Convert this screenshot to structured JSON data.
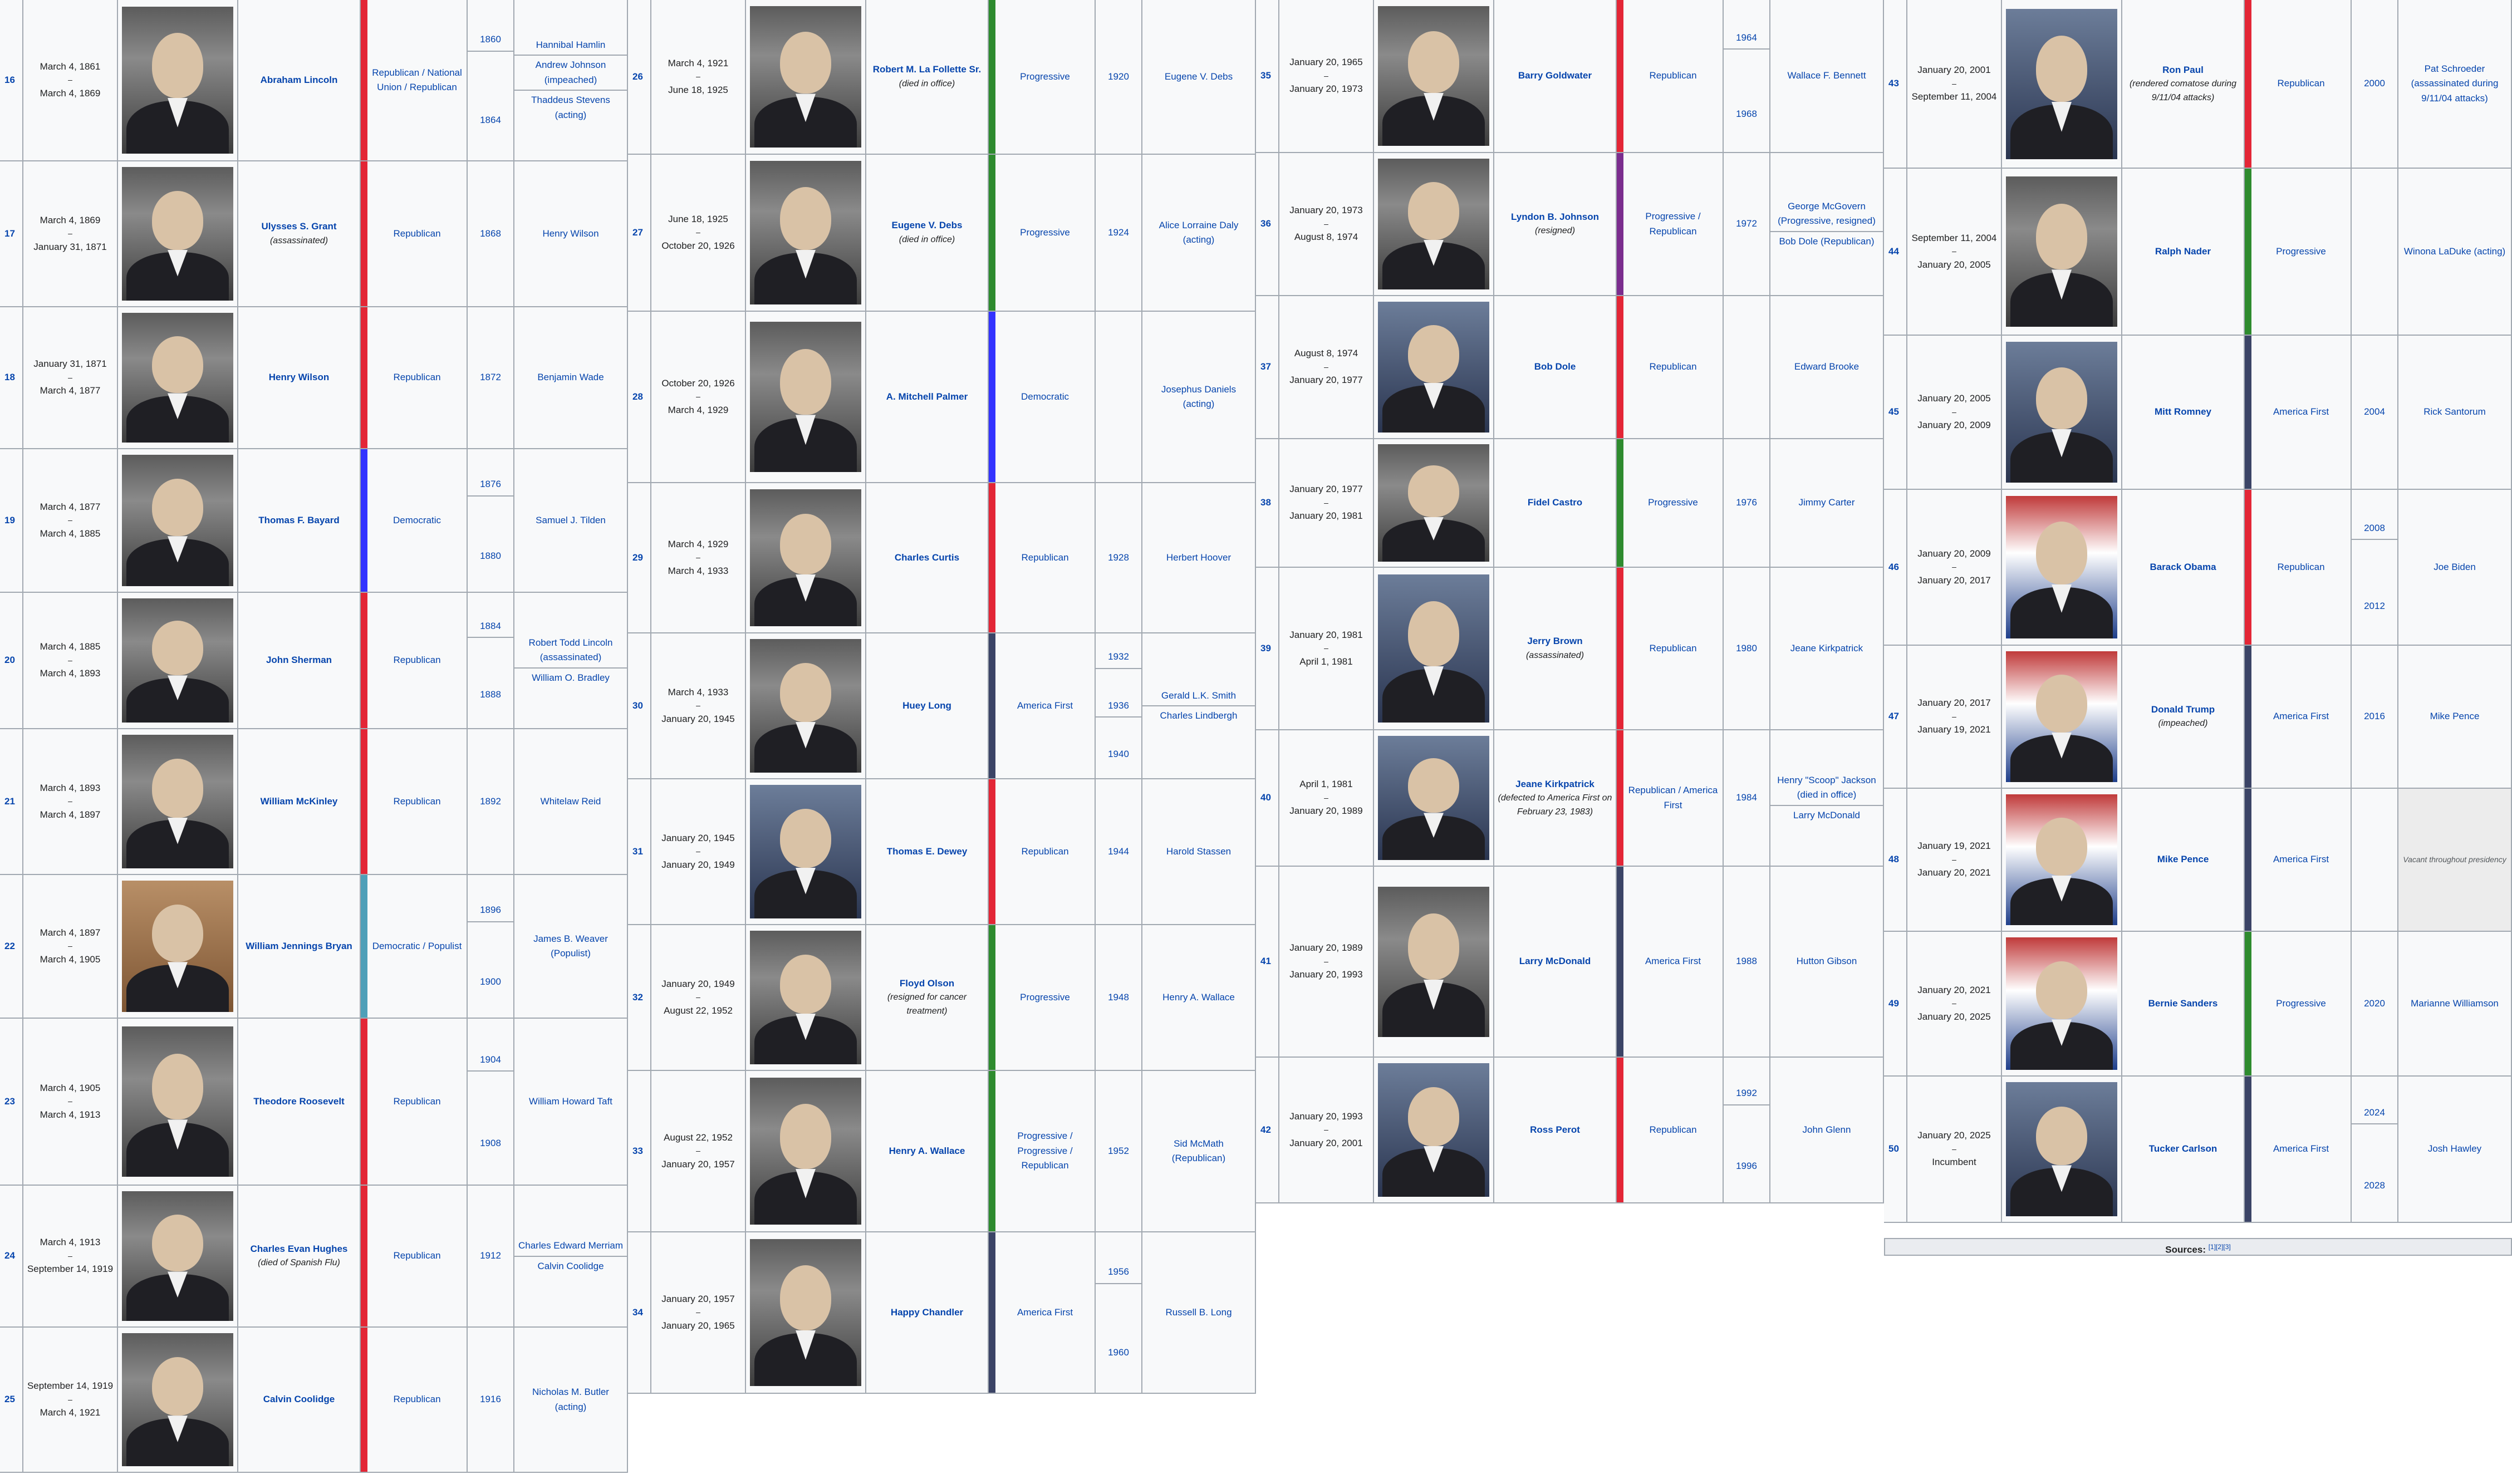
{
  "party_colors": {
    "Republican": "#e32636",
    "Democratic": "#3333ff",
    "Progressive": "#2e8b2e",
    "America First": "#3b4466",
    "Democratic / Populist": "#4f9fb8",
    "Progressive / Republican": "#7b2d8e"
  },
  "columns": [
    [
      {
        "num": "16",
        "term": [
          "March 4, 1861",
          "–",
          "March 4, 1869"
        ],
        "name": "Abraham Lincoln",
        "note": "",
        "party": "Republican / National Union / Republican",
        "years": [
          "1860",
          "1864"
        ],
        "vp": [
          "Hannibal Hamlin",
          "Andrew Johnson (impeached)",
          "Thaddeus Stevens (acting)"
        ],
        "color": "Republican",
        "portrait": "bw"
      },
      {
        "num": "17",
        "term": [
          "March 4, 1869",
          "–",
          "January 31, 1871"
        ],
        "name": "Ulysses S. Grant",
        "note": "(assassinated)",
        "party": "Republican",
        "years": [
          "1868"
        ],
        "vp": [
          "Henry Wilson"
        ],
        "color": "Republican",
        "portrait": "bw"
      },
      {
        "num": "18",
        "term": [
          "January 31, 1871",
          "–",
          "March 4, 1877"
        ],
        "name": "Henry Wilson",
        "note": "",
        "party": "Republican",
        "years": [
          "1872"
        ],
        "vp": [
          "Benjamin Wade"
        ],
        "color": "Republican",
        "portrait": "bw"
      },
      {
        "num": "19",
        "term": [
          "March 4, 1877",
          "–",
          "March 4, 1885"
        ],
        "name": "Thomas F. Bayard",
        "note": "",
        "party": "Democratic",
        "years": [
          "1876",
          "1880"
        ],
        "vp": [
          "Samuel J. Tilden"
        ],
        "color": "Democratic",
        "portrait": "bw"
      },
      {
        "num": "20",
        "term": [
          "March 4, 1885",
          "–",
          "March 4, 1893"
        ],
        "name": "John Sherman",
        "note": "",
        "party": "Republican",
        "years": [
          "1884",
          "1888"
        ],
        "vp": [
          "Robert Todd Lincoln (assassinated)",
          "William O. Bradley"
        ],
        "color": "Republican",
        "portrait": "bw"
      },
      {
        "num": "21",
        "term": [
          "March 4, 1893",
          "–",
          "March 4, 1897"
        ],
        "name": "William McKinley",
        "note": "",
        "party": "Republican",
        "years": [
          "1892"
        ],
        "vp": [
          "Whitelaw Reid"
        ],
        "color": "Republican",
        "portrait": "bw"
      },
      {
        "num": "22",
        "term": [
          "March 4, 1897",
          "–",
          "March 4, 1905"
        ],
        "name": "William Jennings Bryan",
        "note": "",
        "party": "Democratic / Populist",
        "years": [
          "1896",
          "1900"
        ],
        "vp": [
          "James B. Weaver (Populist)"
        ],
        "color": "Democratic / Populist",
        "portrait": "sepia"
      },
      {
        "num": "23",
        "term": [
          "March 4, 1905",
          "–",
          "March 4, 1913"
        ],
        "name": "Theodore Roosevelt",
        "note": "",
        "party": "Republican",
        "years": [
          "1904",
          "1908"
        ],
        "vp": [
          "William Howard Taft"
        ],
        "color": "Republican",
        "portrait": "bw"
      },
      {
        "num": "24",
        "term": [
          "March 4, 1913",
          "–",
          "September 14, 1919"
        ],
        "name": "Charles Evan Hughes",
        "note": "(died of Spanish Flu)",
        "party": "Republican",
        "years": [
          "1912"
        ],
        "vp": [
          "Charles Edward Merriam",
          "Calvin Coolidge"
        ],
        "color": "Republican",
        "portrait": "bw"
      },
      {
        "num": "25",
        "term": [
          "September 14, 1919",
          "–",
          "March 4, 1921"
        ],
        "name": "Calvin Coolidge",
        "note": "",
        "party": "Republican",
        "years": [
          "1916"
        ],
        "vp": [
          "Nicholas M. Butler (acting)"
        ],
        "color": "Republican",
        "portrait": "bw"
      }
    ],
    [
      {
        "num": "26",
        "term": [
          "March 4, 1921",
          "–",
          "June 18, 1925"
        ],
        "name": "Robert M. La Follette Sr.",
        "note": "(died in office)",
        "party": "Progressive",
        "years": [
          "1920"
        ],
        "vp": [
          "Eugene V. Debs"
        ],
        "color": "Progressive",
        "portrait": "bw"
      },
      {
        "num": "27",
        "term": [
          "June 18, 1925",
          "–",
          "October 20, 1926"
        ],
        "name": "Eugene V. Debs",
        "note": "(died in office)",
        "party": "Progressive",
        "years": [
          "1924"
        ],
        "vp": [
          "Alice Lorraine Daly (acting)"
        ],
        "color": "Progressive",
        "portrait": "bw"
      },
      {
        "num": "28",
        "term": [
          "October 20, 1926",
          "–",
          "March 4, 1929"
        ],
        "name": "A. Mitchell Palmer",
        "note": "",
        "party": "Democratic",
        "years": [
          ""
        ],
        "vp": [
          "Josephus Daniels (acting)"
        ],
        "color": "Democratic",
        "portrait": "bw"
      },
      {
        "num": "29",
        "term": [
          "March 4, 1929",
          "–",
          "March 4, 1933"
        ],
        "name": "Charles Curtis",
        "note": "",
        "party": "Republican",
        "years": [
          "1928"
        ],
        "vp": [
          "Herbert Hoover"
        ],
        "color": "Republican",
        "portrait": "bw"
      },
      {
        "num": "30",
        "term": [
          "March 4, 1933",
          "–",
          "January 20, 1945"
        ],
        "name": "Huey Long",
        "note": "",
        "party": "America First",
        "years": [
          "1932",
          "1936",
          "1940"
        ],
        "vp": [
          "Gerald L.K. Smith",
          "Charles Lindbergh"
        ],
        "color": "America First",
        "portrait": "bw"
      },
      {
        "num": "31",
        "term": [
          "January 20, 1945",
          "–",
          "January 20, 1949"
        ],
        "name": "Thomas E. Dewey",
        "note": "",
        "party": "Republican",
        "years": [
          "1944"
        ],
        "vp": [
          "Harold Stassen"
        ],
        "color": "Republican",
        "portrait": "color"
      },
      {
        "num": "32",
        "term": [
          "January 20, 1949",
          "–",
          "August 22, 1952"
        ],
        "name": "Floyd Olson",
        "note": "(resigned for cancer treatment)",
        "party": "Progressive",
        "years": [
          "1948"
        ],
        "vp": [
          "Henry A. Wallace"
        ],
        "color": "Progressive",
        "portrait": "bw"
      },
      {
        "num": "33",
        "term": [
          "August 22, 1952",
          "–",
          "January 20, 1957"
        ],
        "name": "Henry A. Wallace",
        "note": "",
        "party": "Progressive / Progressive / Republican",
        "years": [
          "1952"
        ],
        "vp": [
          "Sid McMath (Republican)"
        ],
        "color": "Progressive",
        "portrait": "bw"
      },
      {
        "num": "34",
        "term": [
          "January 20, 1957",
          "–",
          "January 20, 1965"
        ],
        "name": "Happy Chandler",
        "note": "",
        "party": "America First",
        "years": [
          "1956",
          "1960"
        ],
        "vp": [
          "Russell B. Long"
        ],
        "color": "America First",
        "portrait": "bw"
      }
    ],
    [
      {
        "num": "35",
        "term": [
          "January 20, 1965",
          "–",
          "January 20, 1973"
        ],
        "name": "Barry Goldwater",
        "note": "",
        "party": "Republican",
        "years": [
          "1964",
          "1968"
        ],
        "vp": [
          "Wallace F. Bennett"
        ],
        "color": "Republican",
        "portrait": "bw"
      },
      {
        "num": "36",
        "term": [
          "January 20, 1973",
          "–",
          "August 8, 1974"
        ],
        "name": "Lyndon B. Johnson",
        "note": "(resigned)",
        "party": "Progressive / Republican",
        "years": [
          "1972"
        ],
        "vp": [
          "George McGovern (Progressive, resigned)",
          "Bob Dole (Republican)"
        ],
        "color": "Progressive / Republican",
        "portrait": "bw"
      },
      {
        "num": "37",
        "term": [
          "August 8, 1974",
          "–",
          "January 20, 1977"
        ],
        "name": "Bob Dole",
        "note": "",
        "party": "Republican",
        "years": [
          ""
        ],
        "vp": [
          "Edward Brooke"
        ],
        "color": "Republican",
        "portrait": "color"
      },
      {
        "num": "38",
        "term": [
          "January 20, 1977",
          "–",
          "January 20, 1981"
        ],
        "name": "Fidel Castro",
        "note": "",
        "party": "Progressive",
        "years": [
          "1976"
        ],
        "vp": [
          "Jimmy Carter"
        ],
        "color": "Progressive",
        "portrait": "bw"
      },
      {
        "num": "39",
        "term": [
          "January 20, 1981",
          "–",
          "April 1, 1981"
        ],
        "name": "Jerry Brown",
        "note": "(assassinated)",
        "party": "Republican",
        "years": [
          "1980"
        ],
        "vp": [
          "Jeane Kirkpatrick"
        ],
        "color": "Republican",
        "portrait": "color"
      },
      {
        "num": "40",
        "term": [
          "April 1, 1981",
          "–",
          "January 20, 1989"
        ],
        "name": "Jeane Kirkpatrick",
        "note": "(defected to America First on February 23, 1983)",
        "party": "Republican / America First",
        "years": [
          "1984"
        ],
        "vp": [
          "Henry \"Scoop\" Jackson (died in office)",
          "Larry McDonald"
        ],
        "color": "Republican",
        "portrait": "color"
      },
      {
        "num": "41",
        "term": [
          "January 20, 1989",
          "–",
          "January 20, 1993"
        ],
        "name": "Larry McDonald",
        "note": "",
        "party": "America First",
        "years": [
          "1988"
        ],
        "vp": [
          "Hutton Gibson"
        ],
        "color": "America First",
        "portrait": "bw"
      },
      {
        "num": "42",
        "term": [
          "January 20, 1993",
          "–",
          "January 20, 2001"
        ],
        "name": "Ross Perot",
        "note": "",
        "party": "Republican",
        "years": [
          "1992",
          "1996"
        ],
        "vp": [
          "John Glenn"
        ],
        "color": "Republican",
        "portrait": "color"
      }
    ],
    [
      {
        "num": "43",
        "term": [
          "January 20, 2001",
          "–",
          "September 11, 2004"
        ],
        "name": "Ron Paul",
        "note": "(rendered comatose during 9/11/04 attacks)",
        "party": "Republican",
        "years": [
          "2000"
        ],
        "vp": [
          "Pat Schroeder (assassinated during 9/11/04 attacks)"
        ],
        "color": "Republican",
        "portrait": "color"
      },
      {
        "num": "44",
        "term": [
          "September 11, 2004",
          "–",
          "January 20, 2005"
        ],
        "name": "Ralph Nader",
        "note": "",
        "party": "Progressive",
        "years": [
          ""
        ],
        "vp": [
          "Winona LaDuke (acting)"
        ],
        "color": "Progressive",
        "portrait": "bw"
      },
      {
        "num": "45",
        "term": [
          "January 20, 2005",
          "–",
          "January 20, 2009"
        ],
        "name": "Mitt Romney",
        "note": "",
        "party": "America First",
        "years": [
          "2004"
        ],
        "vp": [
          "Rick Santorum"
        ],
        "color": "America First",
        "portrait": "color"
      },
      {
        "num": "46",
        "term": [
          "January 20, 2009",
          "–",
          "January 20, 2017"
        ],
        "name": "Barack Obama",
        "note": "",
        "party": "Republican",
        "years": [
          "2008",
          "2012"
        ],
        "vp": [
          "Joe Biden"
        ],
        "color": "Republican",
        "portrait": "flag"
      },
      {
        "num": "47",
        "term": [
          "January 20, 2017",
          "–",
          "January 19, 2021"
        ],
        "name": "Donald Trump",
        "note": "(impeached)",
        "party": "America First",
        "years": [
          "2016"
        ],
        "vp": [
          "Mike Pence"
        ],
        "color": "America First",
        "portrait": "flag"
      },
      {
        "num": "48",
        "term": [
          "January 19, 2021",
          "–",
          "January 20, 2021"
        ],
        "name": "Mike Pence",
        "note": "",
        "party": "America First",
        "years": [
          ""
        ],
        "vp": [
          "Vacant throughout presidency"
        ],
        "color": "America First",
        "portrait": "flag"
      },
      {
        "num": "49",
        "term": [
          "January 20, 2021",
          "–",
          "January 20, 2025"
        ],
        "name": "Bernie Sanders",
        "note": "",
        "party": "Progressive",
        "years": [
          "2020"
        ],
        "vp": [
          "Marianne Williamson"
        ],
        "color": "Progressive",
        "portrait": "flag"
      },
      {
        "num": "50",
        "term": [
          "January 20, 2025",
          "–",
          "Incumbent"
        ],
        "name": "Tucker Carlson",
        "note": "",
        "party": "America First",
        "years": [
          "2024",
          "2028"
        ],
        "vp": [
          "Josh Hawley"
        ],
        "color": "America First",
        "portrait": "color"
      }
    ]
  ],
  "sources": {
    "label": "Sources:",
    "refs": "[1][2][3]"
  }
}
